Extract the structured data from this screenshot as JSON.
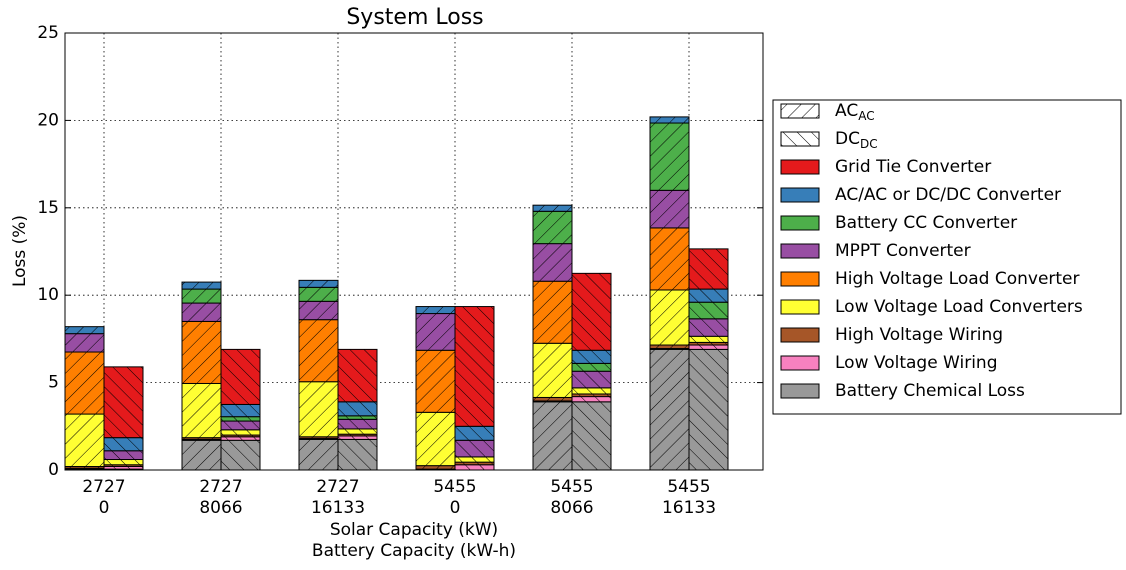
{
  "chart_data": {
    "type": "stacked_bar",
    "title": "System Loss",
    "y_label": "Loss (%)",
    "x_labels": [
      "Solar Capacity (kW)",
      "Battery Capacity (kW-h)"
    ],
    "categories": [
      [
        "2727",
        "0"
      ],
      [
        "2727",
        "8066"
      ],
      [
        "2727",
        "16133"
      ],
      [
        "5455",
        "0"
      ],
      [
        "5455",
        "8066"
      ],
      [
        "5455",
        "16133"
      ]
    ],
    "hatch_groups": [
      {
        "name": "AC",
        "sub": "AC",
        "hatch": "backslash"
      },
      {
        "name": "DC",
        "sub": "DC",
        "hatch": "slash"
      }
    ],
    "ylim": [
      0,
      25
    ],
    "yticks": [
      0,
      5,
      10,
      15,
      20,
      25
    ],
    "grid": true,
    "legend": "right",
    "series": [
      {
        "name": "Battery Chemical Loss",
        "color": "#999999",
        "values": [
          [
            0.05,
            0.05
          ],
          [
            1.7,
            1.7
          ],
          [
            1.75,
            1.75
          ],
          [
            0,
            0
          ],
          [
            3.9,
            3.9
          ],
          [
            6.9,
            6.9
          ]
        ]
      },
      {
        "name": "Low Voltage Wiring",
        "color": "#f781bf",
        "values": [
          [
            0.05,
            0.15
          ],
          [
            0.05,
            0.2
          ],
          [
            0.05,
            0.2
          ],
          [
            0.05,
            0.3
          ],
          [
            0.05,
            0.3
          ],
          [
            0.05,
            0.25
          ]
        ]
      },
      {
        "name": "High Voltage Wiring",
        "color": "#a65628",
        "values": [
          [
            0.1,
            0.1
          ],
          [
            0.1,
            0.1
          ],
          [
            0.1,
            0.1
          ],
          [
            0.2,
            0.15
          ],
          [
            0.2,
            0.15
          ],
          [
            0.2,
            0.15
          ]
        ]
      },
      {
        "name": "Low Voltage Load Converters",
        "color": "#ffff33",
        "values": [
          [
            3.0,
            0.3
          ],
          [
            3.1,
            0.3
          ],
          [
            3.15,
            0.3
          ],
          [
            3.05,
            0.3
          ],
          [
            3.1,
            0.35
          ],
          [
            3.15,
            0.35
          ]
        ]
      },
      {
        "name": "High Voltage Load Converter",
        "color": "#ff7f00",
        "values": [
          [
            3.55,
            0
          ],
          [
            3.55,
            0
          ],
          [
            3.55,
            0
          ],
          [
            3.55,
            0
          ],
          [
            3.55,
            0
          ],
          [
            3.55,
            0
          ]
        ]
      },
      {
        "name": "MPPT Converter",
        "color": "#984ea3",
        "values": [
          [
            1.05,
            0.5
          ],
          [
            1.05,
            0.5
          ],
          [
            1.05,
            0.55
          ],
          [
            2.1,
            0.95
          ],
          [
            2.15,
            0.95
          ],
          [
            2.15,
            1.0
          ]
        ]
      },
      {
        "name": "Battery CC Converter",
        "color": "#4daf4a",
        "values": [
          [
            0,
            0
          ],
          [
            0.8,
            0.25
          ],
          [
            0.8,
            0.2
          ],
          [
            0,
            0
          ],
          [
            1.85,
            0.45
          ],
          [
            3.85,
            0.95
          ]
        ]
      },
      {
        "name": "AC/AC or DC/DC Converter",
        "color": "#377eb8",
        "values": [
          [
            0.4,
            0.75
          ],
          [
            0.4,
            0.7
          ],
          [
            0.4,
            0.8
          ],
          [
            0.4,
            0.8
          ],
          [
            0.35,
            0.75
          ],
          [
            0.35,
            0.75
          ]
        ]
      },
      {
        "name": "Grid Tie Converter",
        "color": "#e41a1c",
        "values": [
          [
            0,
            4.05
          ],
          [
            0,
            3.15
          ],
          [
            0,
            3.0
          ],
          [
            0,
            6.85
          ],
          [
            0,
            4.4
          ],
          [
            0,
            2.3
          ]
        ]
      }
    ]
  }
}
